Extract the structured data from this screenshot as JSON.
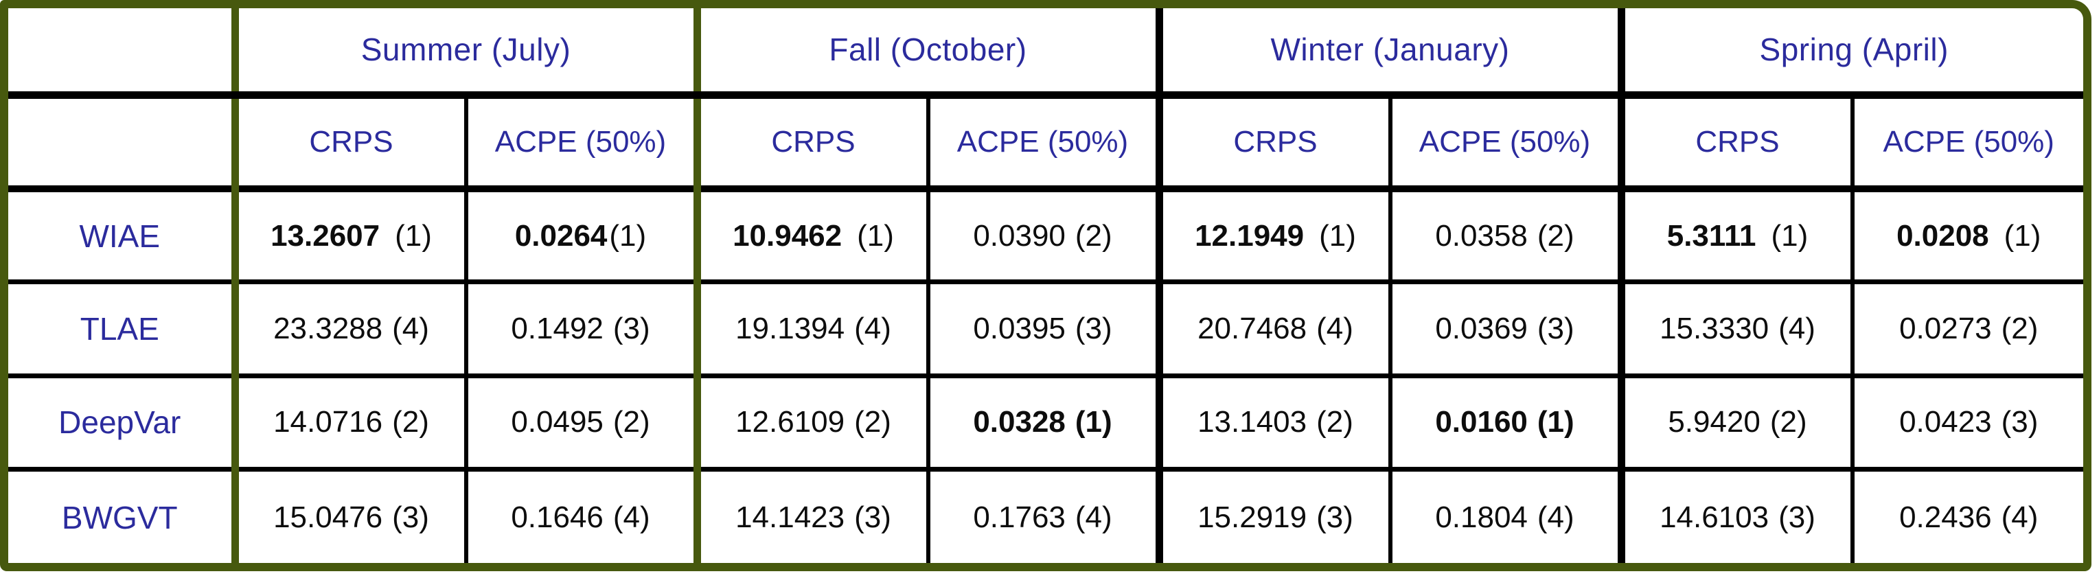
{
  "table": {
    "season_headers": [
      "Summer (July)",
      "Fall (October)",
      "Winter (January)",
      "Spring (April)"
    ],
    "metric_headers": [
      "CRPS",
      "ACPE (50%)"
    ],
    "rows": [
      {
        "label": "WIAE",
        "cells": [
          {
            "value": "13.2607",
            "rank": "(1)"
          },
          {
            "value": "0.0264",
            "rank": "(1)"
          },
          {
            "value": "10.9462",
            "rank": "(1)"
          },
          {
            "value": "0.0390",
            "rank": "(2)"
          },
          {
            "value": "12.1949",
            "rank": "(1)"
          },
          {
            "value": "0.0358",
            "rank": "(2)"
          },
          {
            "value": "5.3111",
            "rank": "(1)"
          },
          {
            "value": "0.0208",
            "rank": "(1)"
          }
        ]
      },
      {
        "label": "TLAE",
        "cells": [
          {
            "value": "23.3288",
            "rank": "(4)"
          },
          {
            "value": "0.1492",
            "rank": "(3)"
          },
          {
            "value": "19.1394",
            "rank": "(4)"
          },
          {
            "value": "0.0395",
            "rank": "(3)"
          },
          {
            "value": "20.7468",
            "rank": "(4)"
          },
          {
            "value": "0.0369",
            "rank": "(3)"
          },
          {
            "value": "15.3330",
            "rank": "(4)"
          },
          {
            "value": "0.0273",
            "rank": "(2)"
          }
        ]
      },
      {
        "label": "DeepVar",
        "cells": [
          {
            "value": "14.0716",
            "rank": "(2)"
          },
          {
            "value": "0.0495",
            "rank": "(2)"
          },
          {
            "value": "12.6109",
            "rank": "(2)"
          },
          {
            "value": "0.0328",
            "rank": "(1)"
          },
          {
            "value": "13.1403",
            "rank": "(2)"
          },
          {
            "value": "0.0160",
            "rank": "(1)"
          },
          {
            "value": "5.9420",
            "rank": "(2)"
          },
          {
            "value": "0.0423",
            "rank": "(3)"
          }
        ]
      },
      {
        "label": "BWGVT",
        "cells": [
          {
            "value": "15.0476",
            "rank": "(3)"
          },
          {
            "value": "0.1646",
            "rank": "(4)"
          },
          {
            "value": "14.1423",
            "rank": "(3)"
          },
          {
            "value": "0.1763",
            "rank": "(4)"
          },
          {
            "value": "15.2919",
            "rank": "(3)"
          },
          {
            "value": "0.1804",
            "rank": "(4)"
          },
          {
            "value": "14.6103",
            "rank": "(3)"
          },
          {
            "value": "0.2436",
            "rank": "(4)"
          }
        ]
      }
    ],
    "colors": {
      "outer_border": "#47590e",
      "grid_line": "#000000",
      "header_text": "#2b2b9d",
      "value_text": "#0d0d0d"
    }
  }
}
